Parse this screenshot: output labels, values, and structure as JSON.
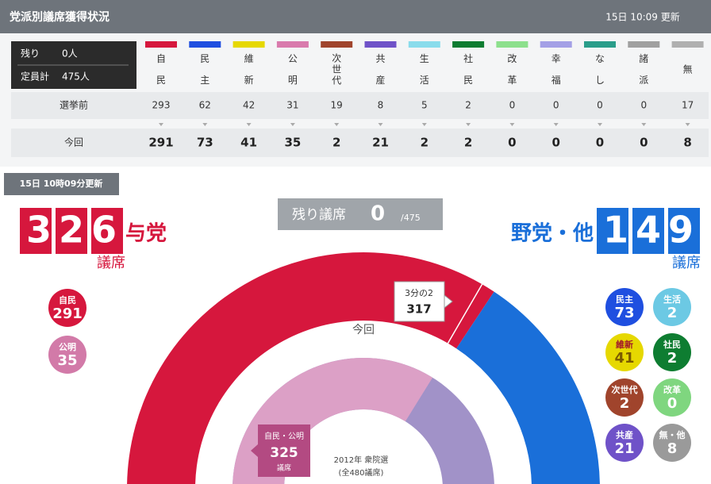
{
  "header": {
    "title": "党派別議席獲得状況",
    "updated": "15日 10:09 更新"
  },
  "summary": {
    "remaining_label": "残り",
    "remaining_value": "0人",
    "total_label": "定員計",
    "total_value": "475人"
  },
  "rows": {
    "before": "選挙前",
    "now": "今回"
  },
  "parties": [
    {
      "name": [
        "自",
        "民"
      ],
      "color": "#d6173d",
      "before": 293,
      "now": 291
    },
    {
      "name": [
        "民",
        "主"
      ],
      "color": "#1f4fe0",
      "before": 62,
      "now": 73
    },
    {
      "name": [
        "維",
        "新"
      ],
      "color": "#e6d800",
      "before": 42,
      "now": 41
    },
    {
      "name": [
        "公",
        "明"
      ],
      "color": "#d97bad",
      "before": 31,
      "now": 35
    },
    {
      "name": [
        "次",
        "世",
        "代"
      ],
      "color": "#a0442c",
      "before": 19,
      "now": 2
    },
    {
      "name": [
        "共",
        "産"
      ],
      "color": "#6f52c8",
      "before": 8,
      "now": 21
    },
    {
      "name": [
        "生",
        "活"
      ],
      "color": "#8adcec",
      "before": 5,
      "now": 2
    },
    {
      "name": [
        "社",
        "民"
      ],
      "color": "#0e7d31",
      "before": 2,
      "now": 2
    },
    {
      "name": [
        "改",
        "革"
      ],
      "color": "#8de08d",
      "before": 0,
      "now": 0
    },
    {
      "name": [
        "幸",
        "福"
      ],
      "color": "#a4a0e6",
      "before": 0,
      "now": 0
    },
    {
      "name": [
        "な",
        "し"
      ],
      "color": "#2a9d8a",
      "before": 0,
      "now": 0
    },
    {
      "name": [
        "諸",
        "派"
      ],
      "color": "#a0a0a0",
      "before": 0,
      "now": 0
    },
    {
      "name": [
        "無"
      ],
      "color": "#b0b0b0",
      "before": 17,
      "now": 8
    }
  ],
  "update_badge": "15日 10時09分更新",
  "ruling": {
    "seats": 326,
    "label": "与党",
    "unit": "議席",
    "color": "#d6173d"
  },
  "opposition": {
    "seats": 149,
    "label": "野党・他",
    "unit": "議席",
    "color": "#1a6fd9"
  },
  "remaining": {
    "label": "残り議席",
    "value": 0,
    "total": {
      "value": 475,
      "label": "/475"
    }
  },
  "ring_label": "今回",
  "callout": {
    "label": "3分の2",
    "value": 317
  },
  "bubbles_left": [
    {
      "name": "自民",
      "value": 291,
      "color": "#d6173d"
    },
    {
      "name": "公明",
      "value": 35,
      "color": "#d27aa8"
    }
  ],
  "bubbles_right": [
    {
      "name": "民主",
      "value": 73,
      "color": "#1f4fe0"
    },
    {
      "name": "生活",
      "value": 2,
      "color": "#6cc9e4"
    },
    {
      "name": "維新",
      "value": 41,
      "color": "#e6d800"
    },
    {
      "name": "社民",
      "value": 2,
      "color": "#0e7d31"
    },
    {
      "name": "次世代",
      "value": 2,
      "color": "#a0442c"
    },
    {
      "name": "改革",
      "value": 0,
      "color": "#7fd67f"
    },
    {
      "name": "共産",
      "value": 21,
      "color": "#6f52c8"
    },
    {
      "name": "無・他",
      "value": 8,
      "color": "#9a9a9a"
    }
  ],
  "previous": {
    "label": "自民・公明",
    "value": 325,
    "unit": "議席",
    "election": "2012年 衆院選",
    "total": {
      "value": 480,
      "label": "(全480議席)"
    }
  }
}
